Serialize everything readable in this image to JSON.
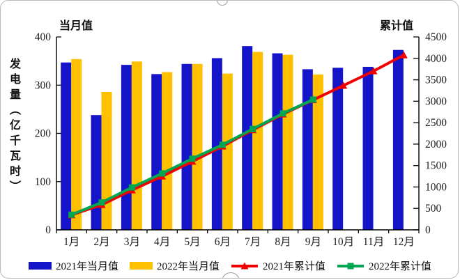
{
  "frame": {
    "handle_top_name": "selection-handle-top",
    "handle_bottom_name": "selection-handle-bottom"
  },
  "chart_data": {
    "type": "bar",
    "subtype": "bar+line combo, dual axis",
    "title": "",
    "left_axis": {
      "title": "当月值",
      "label": "发电量（亿千瓦时）",
      "min": 0,
      "max": 400,
      "ticks": [
        0,
        100,
        200,
        300,
        400
      ]
    },
    "right_axis": {
      "title": "累计值",
      "min": 0,
      "max": 4500,
      "ticks": [
        0,
        500,
        1000,
        1500,
        2000,
        2500,
        3000,
        3500,
        4000,
        4500
      ]
    },
    "categories": [
      "1月",
      "2月",
      "3月",
      "4月",
      "5月",
      "6月",
      "7月",
      "8月",
      "9月",
      "10月",
      "11月",
      "12月"
    ],
    "series": [
      {
        "name": "2021年当月值",
        "type": "bar",
        "axis": "left",
        "color": "#1414c8",
        "marker": "none",
        "values": [
          347,
          238,
          342,
          323,
          344,
          356,
          381,
          366,
          333,
          336,
          338,
          373
        ]
      },
      {
        "name": "2022年当月值",
        "type": "bar",
        "axis": "left",
        "color": "#ffc000",
        "marker": "none",
        "values": [
          354,
          286,
          349,
          327,
          344,
          324,
          369,
          363,
          322,
          null,
          null,
          null
        ]
      },
      {
        "name": "2021年累计值",
        "type": "line",
        "axis": "right",
        "color": "#f00000",
        "marker": "triangle",
        "values": [
          347,
          585,
          927,
          1250,
          1594,
          1950,
          2331,
          2697,
          3030,
          3366,
          3704,
          4077
        ]
      },
      {
        "name": "2022年累计值",
        "type": "line",
        "axis": "right",
        "color": "#00a651",
        "marker": "square",
        "values": [
          354,
          640,
          989,
          1316,
          1660,
          1984,
          2353,
          2716,
          3038,
          null,
          null,
          null
        ]
      }
    ],
    "legend_position": "bottom",
    "grid": false
  }
}
